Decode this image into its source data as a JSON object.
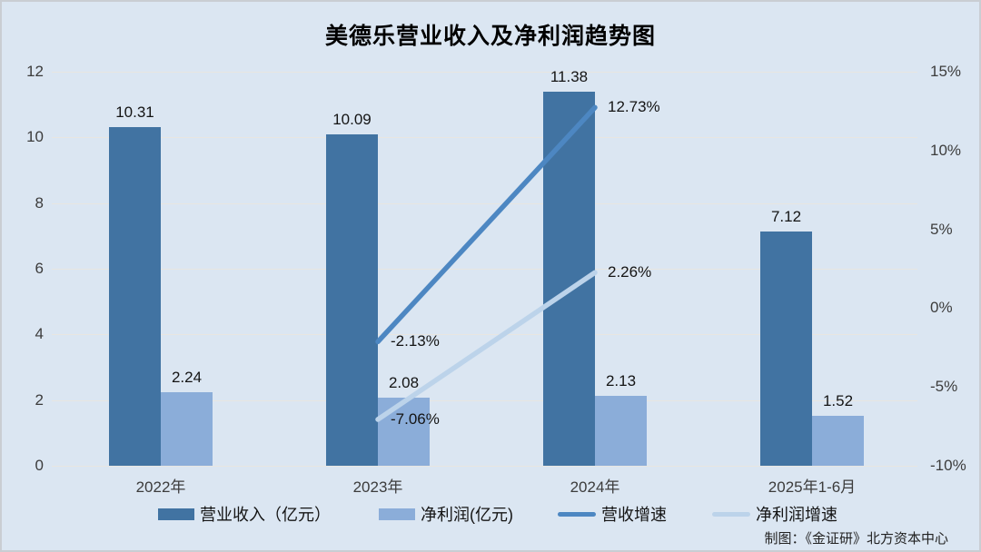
{
  "title": "美德乐营业收入及净利润趋势图",
  "footer": {
    "credit": "制图：《金证研》北方资本中心"
  },
  "colors": {
    "background": "#dbe6f2",
    "border": "#c9cdd3",
    "gridline": "#e8e6e1",
    "revenue_bar": "#4173a2",
    "profit_bar": "#8badd9",
    "revenue_growth_line": "#4d87c2",
    "profit_growth_line": "#bcd3ea"
  },
  "chart_data": {
    "type": "bar",
    "subtype": "combo-bar-line-dual-axis",
    "title": "美德乐营业收入及净利润趋势图",
    "categories": [
      "2022年",
      "2023年",
      "2024年",
      "2025年1-6月"
    ],
    "series": [
      {
        "name": "营业收入（亿元）",
        "kind": "bar",
        "axis": "left",
        "color": "#4173a2",
        "values": [
          10.31,
          10.09,
          11.38,
          7.12
        ],
        "point_labels": [
          "10.31",
          "10.09",
          "11.38",
          "7.12"
        ]
      },
      {
        "name": "净利润(亿元)",
        "kind": "bar",
        "axis": "left",
        "color": "#8badd9",
        "values": [
          2.24,
          2.08,
          2.13,
          1.52
        ],
        "point_labels": [
          "2.24",
          "2.08",
          "2.13",
          "1.52"
        ]
      },
      {
        "name": "营收增速",
        "kind": "line",
        "axis": "right",
        "color": "#4d87c2",
        "values": [
          null,
          -2.13,
          12.73,
          null
        ],
        "point_labels": [
          null,
          "-2.13%",
          "12.73%",
          null
        ]
      },
      {
        "name": "净利润增速",
        "kind": "line",
        "axis": "right",
        "color": "#bcd3ea",
        "values": [
          null,
          -7.06,
          2.26,
          null
        ],
        "point_labels": [
          null,
          "-7.06%",
          "2.26%",
          null
        ]
      }
    ],
    "left_axis": {
      "ticks": [
        0,
        2,
        4,
        6,
        8,
        10,
        12
      ],
      "range": [
        0,
        12
      ]
    },
    "right_axis": {
      "ticks": [
        -10,
        -5,
        0,
        5,
        10,
        15
      ],
      "tick_labels": [
        "-10%",
        "-5%",
        "0%",
        "5%",
        "10%",
        "15%"
      ],
      "range": [
        -10,
        15
      ]
    },
    "grid": true,
    "legend_position": "bottom",
    "legend": [
      "营业收入（亿元）",
      "净利润(亿元)",
      "营收增速",
      "净利润增速"
    ]
  }
}
